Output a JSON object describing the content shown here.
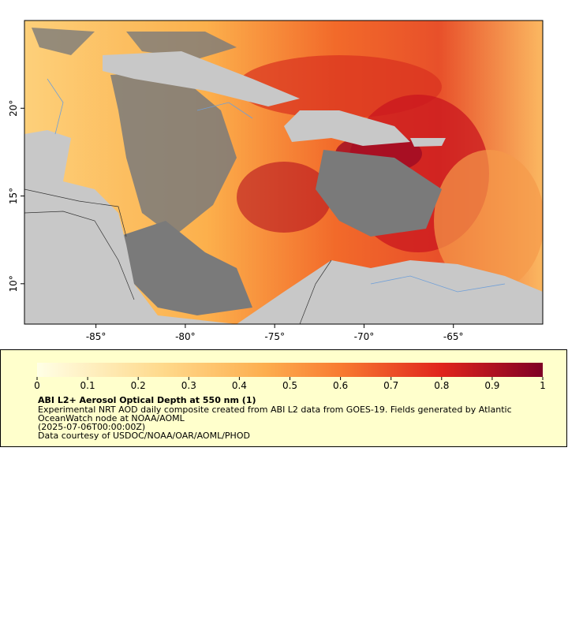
{
  "map": {
    "xlim": [
      -89,
      -60
    ],
    "ylim": [
      7.7,
      25
    ],
    "xticks": [
      {
        "value": -85,
        "label": "-85°"
      },
      {
        "value": -80,
        "label": "-80°"
      },
      {
        "value": -75,
        "label": "-75°"
      },
      {
        "value": -70,
        "label": "-70°"
      },
      {
        "value": -65,
        "label": "-65°"
      }
    ],
    "yticks": [
      {
        "value": 10,
        "label": "10°"
      },
      {
        "value": 15,
        "label": "15°"
      },
      {
        "value": 20,
        "label": "20°"
      }
    ]
  },
  "colorbar": {
    "range": [
      0,
      1
    ],
    "ticks": [
      0,
      0.1,
      0.2,
      0.3,
      0.4,
      0.5,
      0.6,
      0.7,
      0.8,
      0.9,
      1
    ]
  },
  "legend": {
    "title": "ABI L2+ Aerosol Optical Depth at 550 nm (1)",
    "lines": [
      "Experimental NRT AOD daily composite created from ABI L2 data from GOES-19. Fields generated by Atlantic",
      "OceanWatch node at NOAA/AOML",
      "(2025-07-06T00:00:00Z)",
      "Data courtesy of USDOC/NOAA/OAR/AOML/PHOD"
    ]
  }
}
